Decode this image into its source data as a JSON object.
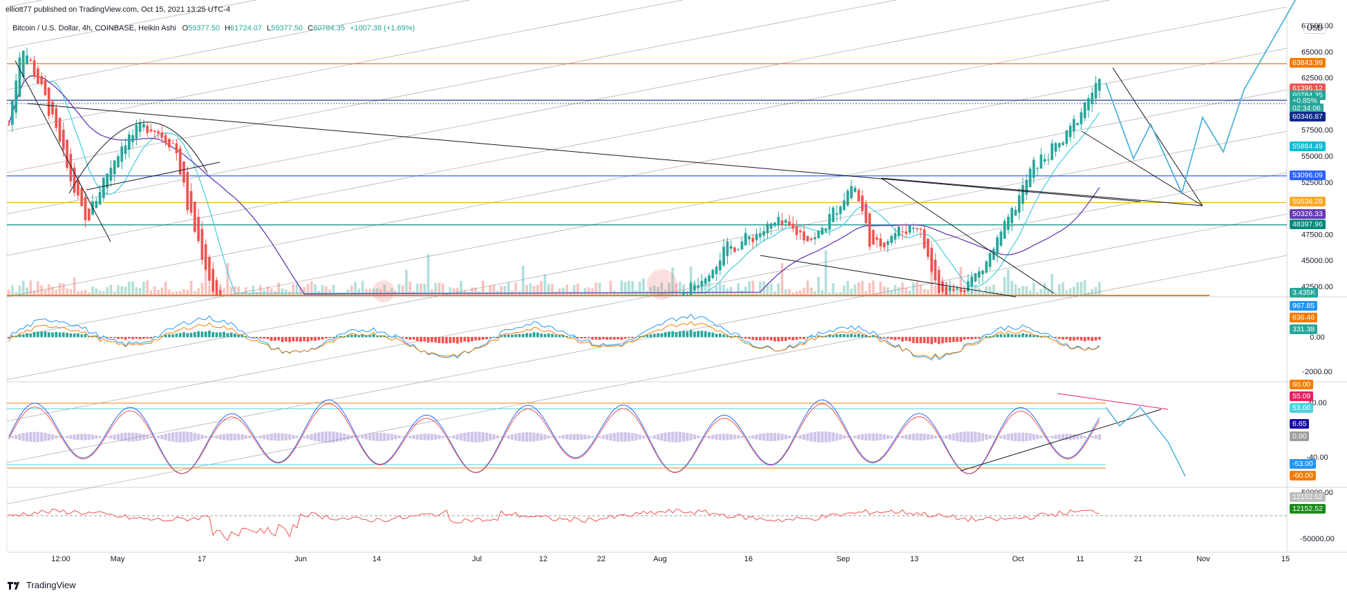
{
  "header": {
    "publisher": "elliott77 published on TradingView.com, Oct 15, 2021 13:25 UTC-4",
    "symbol": "Bitcoin / U.S. Dollar, 4h, COINBASE, Heikin Ashi",
    "ohlc": {
      "o_label": "O",
      "o": "59377.50",
      "h_label": "H",
      "h": "61724.07",
      "l_label": "L",
      "l": "59377.50",
      "c_label": "C",
      "c": "60784.35",
      "change": "+1007.38 (+1.69%)"
    },
    "currency": "USD"
  },
  "footer": {
    "brand": "TradingView",
    "logo_icon": "tradingview-logo-icon"
  },
  "colors": {
    "up": "#26a69a",
    "down": "#ef5350",
    "orange": "#f57c00",
    "blue": "#2962ff",
    "navy": "#0d2a8a",
    "teal": "#00897b",
    "cyan": "#4dd0e1",
    "purple": "#673ab7",
    "yellow": "#f9a825"
  },
  "chart_data": {
    "type": "candlestick",
    "title": "Bitcoin / U.S. Dollar, 4h, COINBASE, Heikin Ashi",
    "x_ticks": [
      "12:00",
      "May",
      "17",
      "Jun",
      "14",
      "Jul",
      "12",
      "22",
      "Aug",
      "16",
      "Sep",
      "13",
      "Oct",
      "11",
      "21",
      "Nov",
      "15"
    ],
    "y_ticks": [
      "67500.00",
      "65000.00",
      "62500.00",
      "57500.00",
      "55000.00",
      "52500.00",
      "47500.00",
      "45000.00",
      "42500.00"
    ],
    "ylim": [
      41500,
      68500
    ],
    "price_lines": [
      {
        "name": "level-63843",
        "value": 63843.99,
        "label": "63843.99",
        "color": "#f57c00"
      },
      {
        "name": "level-60346",
        "value": 60346.87,
        "label": "60346.87",
        "color": "#0d2a8a"
      },
      {
        "name": "level-53096",
        "value": 53096.09,
        "label": "53096.09",
        "color": "#2962ff"
      },
      {
        "name": "level-50536",
        "value": 50536.28,
        "label": "50536.28",
        "color": "#f9a825"
      },
      {
        "name": "level-48397",
        "value": 48397.96,
        "label": "48397.96",
        "color": "#00897b"
      }
    ],
    "axis_labels": [
      {
        "name": "high-marker",
        "label": "61396.12",
        "color": "#ef5350",
        "value": 61396.12
      },
      {
        "name": "last-price",
        "label": "60784.35",
        "color": "#26a69a",
        "value": 60784.35
      },
      {
        "name": "last-change",
        "label": "+0.85%",
        "color": "#26a69a",
        "value": 60200
      },
      {
        "name": "countdown",
        "label": "02:34:06",
        "color": "#26a69a",
        "value": 59500
      },
      {
        "name": "level-60346",
        "label": "60346.87",
        "color": "#0d2a8a",
        "value": 58700
      },
      {
        "name": "ema-fast",
        "label": "55884.49",
        "color": "#00bcd4",
        "value": 55884.49
      },
      {
        "name": "level-53096",
        "label": "53096.09",
        "color": "#2962ff",
        "value": 53096.09
      },
      {
        "name": "level-50536",
        "label": "50536.28",
        "color": "#f9a825",
        "value": 50536.28
      },
      {
        "name": "ema-slow",
        "label": "50326.33",
        "color": "#673ab7",
        "value": 49400
      },
      {
        "name": "level-48397",
        "label": "48397.96",
        "color": "#00897b",
        "value": 48397.96
      },
      {
        "name": "volume",
        "label": "3.435K",
        "color": "#26a69a",
        "value": 41800
      }
    ],
    "macd": {
      "labels": [
        "967.85",
        "636.46",
        "331.38"
      ],
      "label_colors": [
        "#2196f3",
        "#f57c00",
        "#26a69a"
      ],
      "y_ticks": [
        "0.00",
        "-2000.00"
      ]
    },
    "stoch": {
      "labels": [
        "60.00",
        "55.09",
        "53.00",
        "6.65",
        "0.00",
        "-53.00",
        "-60.00"
      ],
      "label_colors": [
        "#f57c00",
        "#e91e63",
        "#4dd0e1",
        "#1a0dab",
        "#9e9e9e",
        "#2196f3",
        "#f57c00"
      ],
      "y_ticks": [
        "40.00",
        "-40.00"
      ]
    },
    "oscillator": {
      "labels": [
        "12152.52",
        "12152.52"
      ],
      "label_colors": [
        "#bdbdbd",
        "#1b8a1b"
      ],
      "y_ticks": [
        "50000.00",
        "-50000.00"
      ]
    }
  }
}
